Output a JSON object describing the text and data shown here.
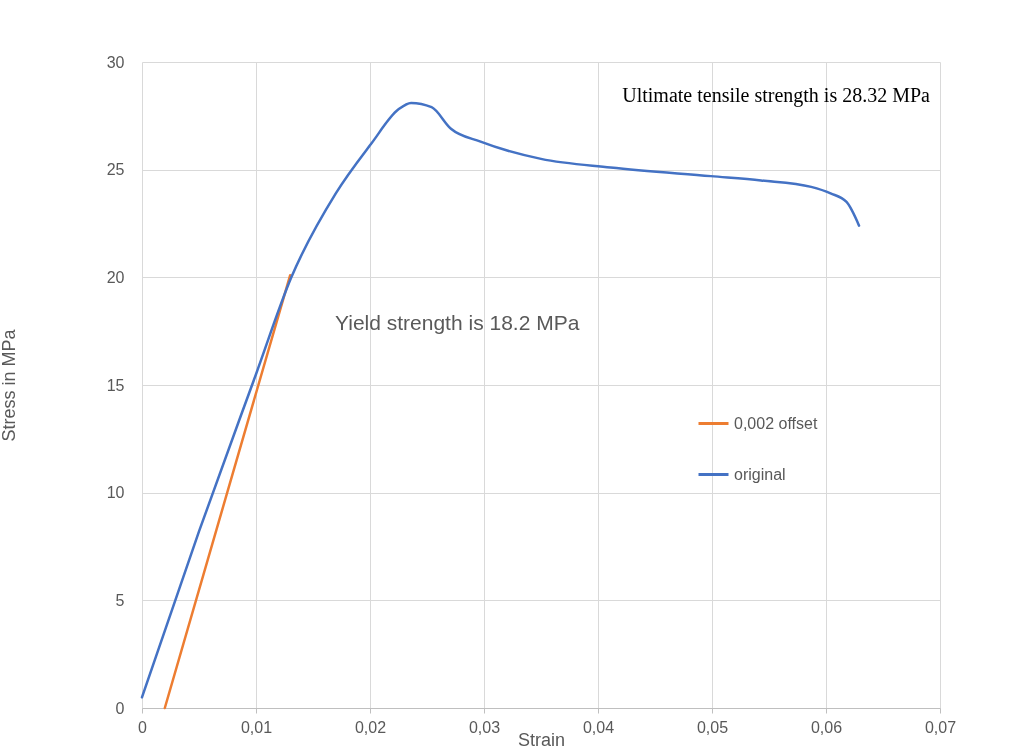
{
  "chart_data": {
    "type": "line",
    "xlabel": "Strain",
    "ylabel": "Stress in MPa",
    "annotations": [
      "Ultimate tensile strength is 28.32 MPa",
      "Yield strength is 18.2 MPa"
    ],
    "xlim": [
      0,
      0.07
    ],
    "ylim": [
      0,
      30
    ],
    "xticks": [
      0,
      {
        "value": 0.01,
        "label": "0,01"
      },
      {
        "value": 0.02,
        "label": "0,02"
      },
      {
        "value": 0.03,
        "label": "0,03"
      },
      {
        "value": 0.04,
        "label": "0,04"
      },
      {
        "value": 0.05,
        "label": "0,05"
      },
      {
        "value": 0.06,
        "label": "0,06"
      },
      {
        "value": 0.07,
        "label": "0,07"
      }
    ],
    "yticks": [
      0,
      5,
      10,
      15,
      20,
      25,
      30
    ],
    "grid": true,
    "legend": "right",
    "line_style": "solid",
    "marker": "none",
    "series": [
      {
        "name": "0,002 offset",
        "color": "#ed7d31",
        "x": [
          0.002,
          0.013
        ],
        "values": [
          0,
          20.1
        ]
      },
      {
        "name": "original",
        "color": "#4472c4",
        "x": [
          0,
          0.005,
          0.01,
          0.0131,
          0.017,
          0.0201,
          0.0225,
          0.0236,
          0.0254,
          0.0271,
          0.0297,
          0.035,
          0.0411,
          0.0499,
          0.0543,
          0.0587,
          0.0604,
          0.0618,
          0.0629
        ],
        "values": [
          0.5,
          8.2,
          15.5,
          20,
          23.9,
          26.2,
          27.8,
          28.1,
          27.9,
          26.9,
          26.3,
          25.5,
          25.1,
          24.7,
          24.5,
          24.2,
          23.9,
          23.5,
          22.4
        ]
      }
    ]
  }
}
